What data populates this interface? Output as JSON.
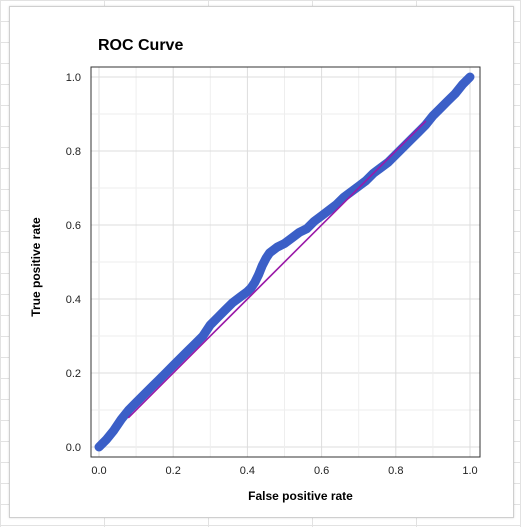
{
  "chart_data": {
    "type": "line",
    "title": "ROC Curve",
    "xlabel": "False positive rate",
    "ylabel": "True positive rate",
    "xlim": [
      0.0,
      1.0
    ],
    "ylim": [
      0.0,
      1.0
    ],
    "x_ticks": [
      "0.0",
      "0.2",
      "0.4",
      "0.6",
      "0.8",
      "1.0"
    ],
    "y_ticks": [
      "0.0",
      "0.2",
      "0.4",
      "0.6",
      "0.8",
      "1.0"
    ],
    "grid": true,
    "legend": "none",
    "colors": {
      "roc": "#3b5fc7",
      "diagonal": "#9b1aa8"
    },
    "series": [
      {
        "style": "thick-line",
        "x": [
          0.0,
          0.02,
          0.04,
          0.06,
          0.08,
          0.1,
          0.12,
          0.14,
          0.16,
          0.18,
          0.2,
          0.22,
          0.24,
          0.26,
          0.28,
          0.3,
          0.32,
          0.34,
          0.36,
          0.38,
          0.4,
          0.41,
          0.42,
          0.43,
          0.44,
          0.45,
          0.46,
          0.48,
          0.5,
          0.52,
          0.54,
          0.56,
          0.58,
          0.6,
          0.62,
          0.64,
          0.66,
          0.68,
          0.7,
          0.72,
          0.74,
          0.76,
          0.78,
          0.8,
          0.82,
          0.84,
          0.86,
          0.88,
          0.9,
          0.92,
          0.94,
          0.96,
          0.98,
          1.0
        ],
        "y": [
          0.0,
          0.02,
          0.045,
          0.075,
          0.1,
          0.12,
          0.14,
          0.16,
          0.18,
          0.2,
          0.22,
          0.24,
          0.26,
          0.28,
          0.3,
          0.33,
          0.35,
          0.37,
          0.39,
          0.405,
          0.42,
          0.43,
          0.445,
          0.465,
          0.49,
          0.51,
          0.525,
          0.54,
          0.55,
          0.565,
          0.58,
          0.59,
          0.61,
          0.625,
          0.64,
          0.655,
          0.675,
          0.69,
          0.705,
          0.72,
          0.74,
          0.755,
          0.77,
          0.79,
          0.81,
          0.83,
          0.85,
          0.87,
          0.895,
          0.915,
          0.935,
          0.955,
          0.98,
          1.0
        ]
      },
      {
        "style": "thin-line",
        "x": [
          0.08,
          0.88
        ],
        "y": [
          0.08,
          0.88
        ]
      }
    ]
  }
}
